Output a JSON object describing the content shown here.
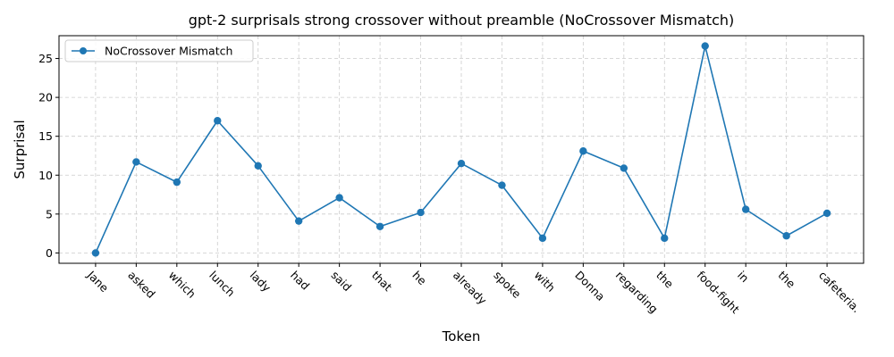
{
  "chart_data": {
    "type": "line",
    "title": "gpt-2 surprisals strong crossover without preamble (NoCrossover Mismatch)",
    "xlabel": "Token",
    "ylabel": "Surprisal",
    "categories": [
      "Jane",
      "asked",
      "which",
      "lunch",
      "lady",
      "had",
      "said",
      "that",
      "he",
      "already",
      "spoke",
      "with",
      "Donna",
      "regarding",
      "the",
      "food-fight",
      "in",
      "the",
      "cafeteria."
    ],
    "series": [
      {
        "name": "NoCrossover Mismatch",
        "color": "#1f77b4",
        "marker": "circle",
        "values": [
          0.0,
          11.7,
          9.1,
          17.0,
          11.2,
          4.1,
          7.1,
          3.4,
          5.2,
          11.5,
          8.7,
          1.9,
          13.1,
          10.9,
          1.9,
          26.6,
          5.6,
          2.2,
          5.1
        ]
      }
    ],
    "ylim": [
      -1.33,
      27.93
    ],
    "yticks": [
      0,
      5,
      10,
      15,
      20,
      25
    ],
    "grid": true,
    "grid_style": "dashed",
    "legend": "upper-left"
  }
}
